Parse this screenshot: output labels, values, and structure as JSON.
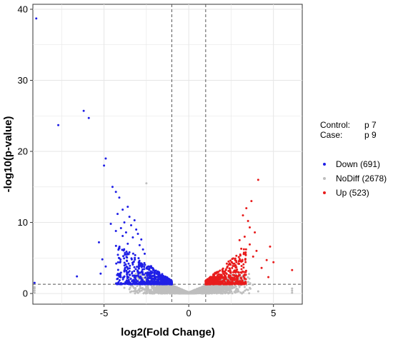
{
  "chart_data": {
    "type": "scatter",
    "title": "",
    "xlabel": "log2(Fold Change)",
    "ylabel": "-log10(p-value)",
    "xlim": [
      -9.2,
      6.7
    ],
    "ylim": [
      -1.5,
      40.7
    ],
    "x_ticks": [
      -5,
      0,
      5
    ],
    "y_ticks": [
      0,
      10,
      20,
      30,
      40
    ],
    "grid": true,
    "thresholds": {
      "fold_change": [
        -1,
        1
      ],
      "p_value": 1.3
    },
    "legend_position": "right",
    "info": [
      {
        "key": "Control:",
        "value": "p 7"
      },
      {
        "key": "Case:",
        "value": "p 9"
      }
    ],
    "series": [
      {
        "name": "Down (691)",
        "color": "#1f1fe6",
        "points": [
          [
            -9.0,
            38.7
          ],
          [
            -7.7,
            23.7
          ],
          [
            -6.2,
            25.7
          ],
          [
            -5.9,
            24.7
          ],
          [
            -4.9,
            19.0
          ],
          [
            -5.0,
            18.0
          ],
          [
            -4.5,
            15.0
          ],
          [
            -4.3,
            14.3
          ],
          [
            -4.1,
            13.5
          ],
          [
            -3.6,
            12.2
          ],
          [
            -3.9,
            11.8
          ],
          [
            -4.2,
            11.2
          ],
          [
            -3.5,
            10.8
          ],
          [
            -3.2,
            10.3
          ],
          [
            -3.8,
            10.0
          ],
          [
            -4.6,
            9.8
          ],
          [
            -3.4,
            9.6
          ],
          [
            -4.0,
            9.2
          ],
          [
            -3.1,
            9.0
          ],
          [
            -4.3,
            8.8
          ],
          [
            -3.7,
            8.6
          ],
          [
            -3.0,
            8.4
          ],
          [
            -3.9,
            8.1
          ],
          [
            -3.3,
            7.9
          ],
          [
            -2.8,
            7.6
          ],
          [
            -5.3,
            7.2
          ],
          [
            -3.6,
            7.0
          ],
          [
            -2.9,
            6.8
          ],
          [
            -4.1,
            6.4
          ],
          [
            -2.7,
            6.2
          ],
          [
            -3.5,
            5.8
          ],
          [
            -2.6,
            5.6
          ],
          [
            -5.1,
            4.8
          ],
          [
            -4.9,
            3.8
          ],
          [
            -3.8,
            3.1
          ],
          [
            -5.2,
            2.8
          ],
          [
            -6.6,
            2.4
          ],
          [
            -9.1,
            1.5
          ]
        ],
        "cloud": {
          "x_range": [
            -4.4,
            -1.0
          ],
          "y_range": [
            1.3,
            7.0
          ],
          "count": 680
        }
      },
      {
        "name": "NoDiff (2678)",
        "color": "#bebebe",
        "points": [
          [
            -9.1,
            0.1
          ],
          [
            -9.1,
            0.4
          ],
          [
            -9.1,
            0.7
          ],
          [
            -9.1,
            0.9
          ],
          [
            6.1,
            0.1
          ],
          [
            6.1,
            0.4
          ],
          [
            6.1,
            0.7
          ],
          [
            -2.5,
            15.5
          ],
          [
            -3.5,
            0.6
          ],
          [
            3.5,
            0.5
          ],
          [
            -2.9,
            0.4
          ],
          [
            2.9,
            0.6
          ],
          [
            -3.8,
            0.8
          ],
          [
            4.1,
            0.3
          ]
        ],
        "cloud": {
          "x_range": [
            -3.6,
            3.8
          ],
          "y_range": [
            0.0,
            2.8
          ],
          "count": 2678
        }
      },
      {
        "name": "Up (523)",
        "color": "#e81c1c",
        "points": [
          [
            4.1,
            16.0
          ],
          [
            3.7,
            13.0
          ],
          [
            3.4,
            12.0
          ],
          [
            3.2,
            11.0
          ],
          [
            3.5,
            10.2
          ],
          [
            3.6,
            9.3
          ],
          [
            3.9,
            8.6
          ],
          [
            3.3,
            8.0
          ],
          [
            3.0,
            7.5
          ],
          [
            3.6,
            6.9
          ],
          [
            4.0,
            6.0
          ],
          [
            3.1,
            6.3
          ],
          [
            4.8,
            6.6
          ],
          [
            4.6,
            4.7
          ],
          [
            5.0,
            4.4
          ],
          [
            3.8,
            5.2
          ],
          [
            4.3,
            3.6
          ],
          [
            6.1,
            3.3
          ],
          [
            4.7,
            2.3
          ]
        ],
        "cloud": {
          "x_range": [
            1.0,
            3.3
          ],
          "y_range": [
            1.3,
            7.0
          ],
          "count": 510
        }
      }
    ]
  }
}
